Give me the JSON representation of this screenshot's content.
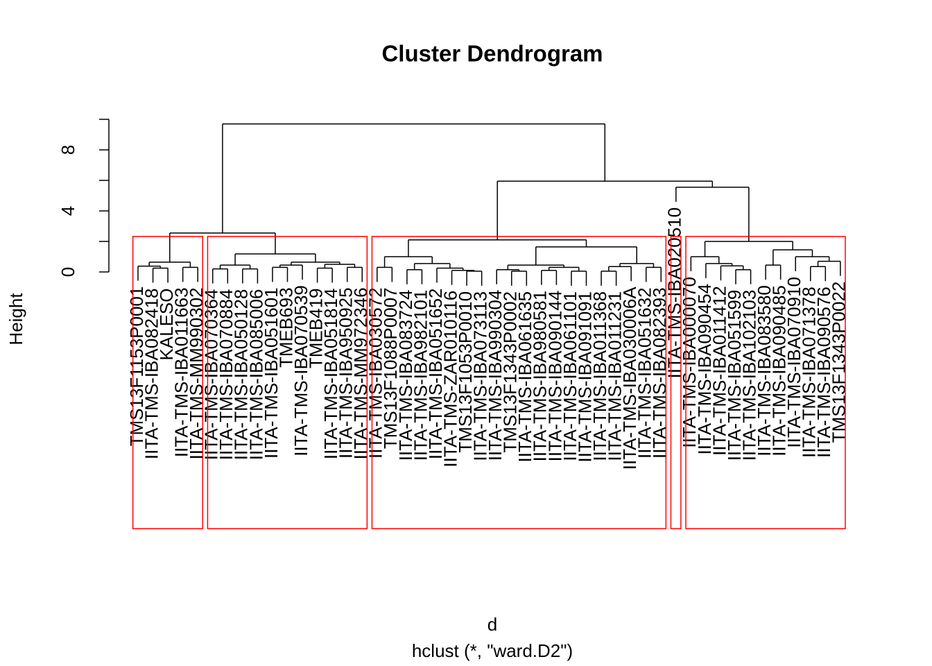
{
  "chart_data": {
    "type": "dendrogram",
    "title": "Cluster Dendrogram",
    "xlabel": "d",
    "subtitle": "hclust (*, \"ward.D2\")",
    "ylabel": "Height",
    "ylim": [
      0,
      10
    ],
    "yticks": [
      0,
      4,
      8
    ],
    "minor_yticks": [
      2,
      6,
      10
    ],
    "line_color": "#000000",
    "rect_k": 5,
    "rect_color": "#ff0000",
    "tree": {
      "height": 9.7,
      "children": [
        {
          "height": 2.55,
          "children": [
            {
              "height": 0.64,
              "children": [
                {
                  "height": 0.38,
                  "children": [
                    {
                      "label": "TMS13F1153P0001"
                    },
                    {
                      "height": 0.25,
                      "children": [
                        {
                          "label": "IITA-TMS-IBA082418"
                        },
                        {
                          "label": "KALESO"
                        }
                      ]
                    }
                  ]
                },
                {
                  "height": 0.3,
                  "children": [
                    {
                      "label": "IITA-TMS-IBA011663"
                    },
                    {
                      "label": "IITA-TMS-MM990302"
                    }
                  ]
                }
              ]
            },
            {
              "height": 1.18,
              "children": [
                {
                  "height": 0.45,
                  "children": [
                    {
                      "height": 0.2,
                      "children": [
                        {
                          "label": "IITA-TMS-IBA070364"
                        },
                        {
                          "label": "IITA-TMS-IBA070884"
                        }
                      ]
                    },
                    {
                      "height": 0.2,
                      "children": [
                        {
                          "label": "IITA-TMS-IBA050128"
                        },
                        {
                          "label": "IITA-TMS-IBA085006"
                        }
                      ]
                    }
                  ]
                },
                {
                  "height": 0.64,
                  "children": [
                    {
                      "height": 0.45,
                      "children": [
                        {
                          "height": 0.3,
                          "children": [
                            {
                              "label": "IITA-TMS-IBA051601"
                            },
                            {
                              "label": "TMEB693"
                            }
                          ]
                        },
                        {
                          "label": "IITA-TMS-IBA070539"
                        }
                      ]
                    },
                    {
                      "height": 0.5,
                      "children": [
                        {
                          "height": 0.25,
                          "children": [
                            {
                              "label": "TMEB419"
                            },
                            {
                              "label": "IITA-TMS-IBA051814"
                            }
                          ]
                        },
                        {
                          "height": 0.3,
                          "children": [
                            {
                              "label": "IITA-TMS-IBA950925"
                            },
                            {
                              "label": "IITA-TMS-MM972346"
                            }
                          ]
                        }
                      ]
                    }
                  ]
                }
              ]
            }
          ]
        },
        {
          "height": 5.95,
          "children": [
            {
              "height": 2.1,
              "children": [
                {
                  "height": 1.0,
                  "children": [
                    {
                      "height": 0.3,
                      "children": [
                        {
                          "label": "IITA-TMS-IBA030572"
                        },
                        {
                          "label": "TMS13F1088P0007"
                        }
                      ]
                    },
                    {
                      "height": 0.55,
                      "children": [
                        {
                          "height": 0.15,
                          "children": [
                            {
                              "label": "IITA-TMS-IBA083724"
                            },
                            {
                              "label": "IITA-TMS-IBA982101"
                            }
                          ]
                        },
                        {
                          "height": 0.25,
                          "children": [
                            {
                              "label": "IITA-TMS-IBA051652"
                            },
                            {
                              "height": 0.1,
                              "children": [
                                {
                                  "label": "IITA-TMS-ZAR010116"
                                },
                                {
                                  "height": 0.05,
                                  "children": [
                                    {
                                      "label": "TMS13F1053P0010"
                                    },
                                    {
                                      "label": "IITA-TMS-IBA073113"
                                    }
                                  ]
                                }
                              ]
                            }
                          ]
                        }
                      ]
                    }
                  ]
                },
                {
                  "height": 1.64,
                  "children": [
                    {
                      "height": 0.45,
                      "children": [
                        {
                          "height": 0.15,
                          "children": [
                            {
                              "label": "IITA-TMS-IBA990304"
                            },
                            {
                              "height": 0.05,
                              "children": [
                                {
                                  "label": "TMS13F1343P0002"
                                },
                                {
                                  "label": "IITA-TMS-IBA061635"
                                }
                              ]
                            }
                          ]
                        },
                        {
                          "height": 0.3,
                          "children": [
                            {
                              "height": 0.1,
                              "children": [
                                {
                                  "label": "IITA-TMS-IBA980581"
                                },
                                {
                                  "label": "IITA-TMS-IBA090144"
                                }
                              ]
                            },
                            {
                              "height": 0.05,
                              "children": [
                                {
                                  "label": "IITA-TMS-IBA061101"
                                },
                                {
                                  "label": "IITA-TMS-IBA091091"
                                }
                              ]
                            }
                          ]
                        }
                      ]
                    },
                    {
                      "height": 0.55,
                      "children": [
                        {
                          "height": 0.35,
                          "children": [
                            {
                              "height": 0.05,
                              "children": [
                                {
                                  "label": "IITA-TMS-IBA011368"
                                },
                                {
                                  "label": "IITA-TMS-IBA011231"
                                }
                              ]
                            },
                            {
                              "label": "IITA-TMS-IBA030006A"
                            }
                          ]
                        },
                        {
                          "height": 0.3,
                          "children": [
                            {
                              "label": "IITA-TMS-IBA051632"
                            },
                            {
                              "label": "IITA-TMS-IBA082393"
                            }
                          ]
                        }
                      ]
                    }
                  ]
                }
              ]
            },
            {
              "height": 5.55,
              "children": [
                {
                  "label": "IITA-TMS-IBA020510"
                },
                {
                  "height": 2.0,
                  "children": [
                    {
                      "height": 1.0,
                      "children": [
                        {
                          "label": "IITA-TMS-IBA000070"
                        },
                        {
                          "height": 0.55,
                          "children": [
                            {
                              "label": "IITA-TMS-IBA090454"
                            },
                            {
                              "height": 0.4,
                              "children": [
                                {
                                  "label": "IITA-TMS-IBA011412"
                                },
                                {
                                  "height": 0.15,
                                  "children": [
                                    {
                                      "label": "IITA-TMS-IBA051599"
                                    },
                                    {
                                      "label": "IITA-TMS-IBA102103"
                                    }
                                  ]
                                }
                              ]
                            }
                          ]
                        }
                      ]
                    },
                    {
                      "height": 1.45,
                      "children": [
                        {
                          "height": 0.45,
                          "children": [
                            {
                              "label": "IITA-TMS-IBA083580"
                            },
                            {
                              "label": "IITA-TMS-IBA090485"
                            }
                          ]
                        },
                        {
                          "height": 1.0,
                          "children": [
                            {
                              "label": "IITA-TMS-IBA070910"
                            },
                            {
                              "height": 0.7,
                              "children": [
                                {
                                  "height": 0.35,
                                  "children": [
                                    {
                                      "label": "IITA-TMS-IBA071378"
                                    },
                                    {
                                      "label": "IITA-TMS-IBA090576"
                                    }
                                  ]
                                },
                                {
                                  "label": "TMS13F1343P0022"
                                }
                              ]
                            }
                          ]
                        }
                      ]
                    }
                  ]
                }
              ]
            }
          ]
        }
      ]
    }
  }
}
